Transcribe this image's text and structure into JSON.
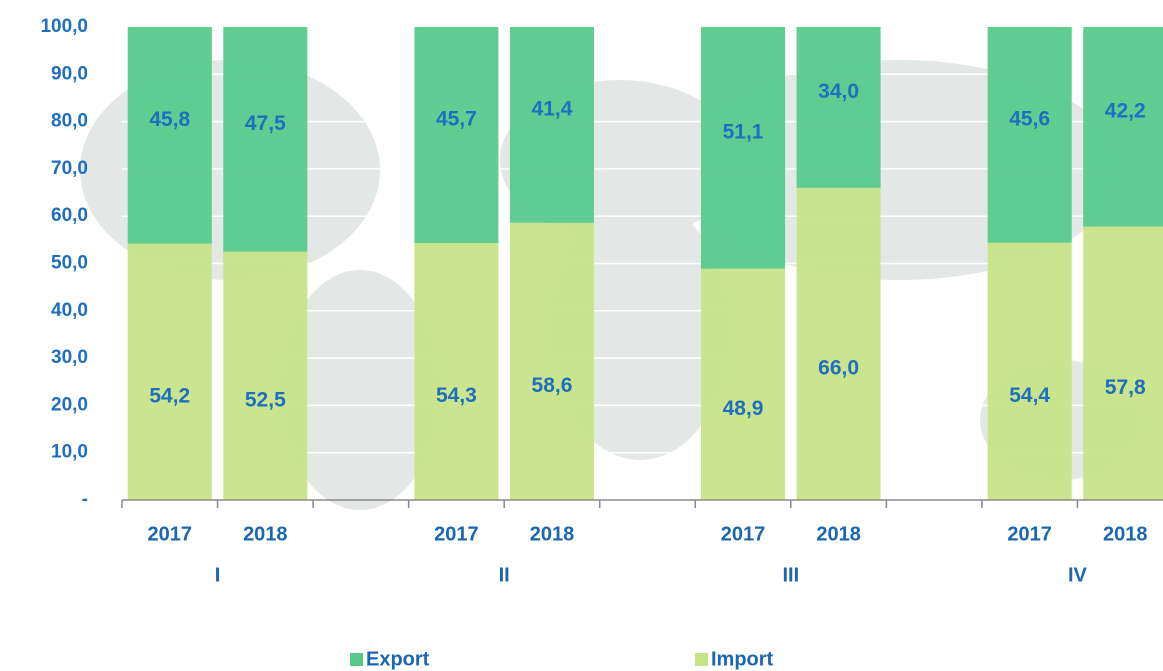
{
  "chart_data": {
    "type": "stacked_bar",
    "categories": [
      "2017",
      "2018",
      null,
      "2017",
      "2018",
      null,
      "2017",
      "2018",
      null,
      "2017",
      "2018"
    ],
    "group_labels": [
      "I",
      "II",
      "III",
      "IV"
    ],
    "series": [
      {
        "name": "Import",
        "color": "#c6e385",
        "values": [
          54.2,
          52.5,
          null,
          54.3,
          58.6,
          null,
          48.9,
          66.0,
          null,
          54.4,
          57.8
        ],
        "value_labels": [
          "54,2",
          "52,5",
          null,
          "54,3",
          "58,6",
          null,
          "48,9",
          "66,0",
          null,
          "54,4",
          "57,8"
        ]
      },
      {
        "name": "Export",
        "color": "#55c98a",
        "values": [
          45.8,
          47.5,
          null,
          45.7,
          41.4,
          null,
          51.1,
          34.0,
          null,
          45.6,
          42.2
        ],
        "value_labels": [
          "45,8",
          "47,5",
          null,
          "45,7",
          "41,4",
          null,
          "51,1",
          "34,0",
          null,
          "45,6",
          "42,2"
        ]
      }
    ],
    "ylim": [
      0,
      100
    ],
    "yticks": [
      {
        "value": 0,
        "label": "-"
      },
      {
        "value": 10,
        "label": "10,0"
      },
      {
        "value": 20,
        "label": "20,0"
      },
      {
        "value": 30,
        "label": "30,0"
      },
      {
        "value": 40,
        "label": "40,0"
      },
      {
        "value": 50,
        "label": "50,0"
      },
      {
        "value": 60,
        "label": "60,0"
      },
      {
        "value": 70,
        "label": "70,0"
      },
      {
        "value": 80,
        "label": "80,0"
      },
      {
        "value": 90,
        "label": "90,0"
      },
      {
        "value": 100,
        "label": "100,0"
      }
    ],
    "grid": true,
    "legend": "bottom"
  }
}
